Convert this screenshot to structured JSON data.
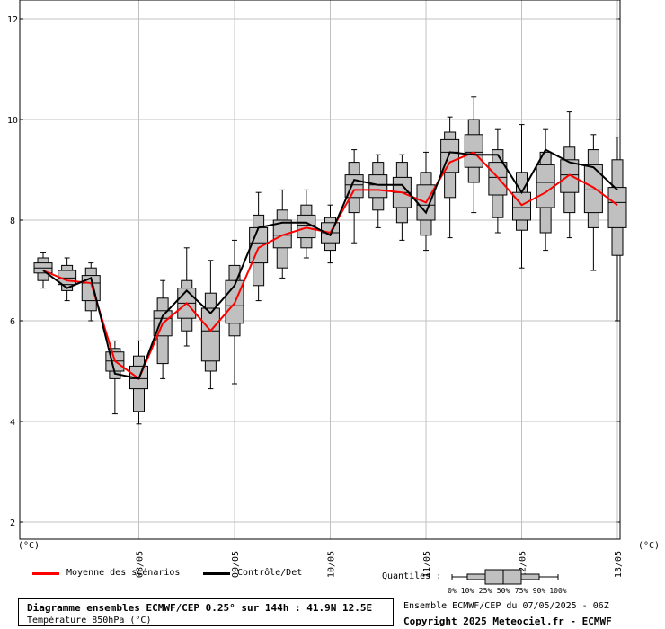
{
  "chart_data": {
    "type": "box",
    "title": "Diagramme ensembles ECMWF/CEP 0.25° sur 144h : 41.9N 12.5E",
    "subtitle": "Température 850hPa (°C)",
    "y_unit_left": "(°C)",
    "y_unit_right": "(°C)",
    "ylim": [
      1.5,
      12.5
    ],
    "y_ticks": [
      2,
      4,
      6,
      8,
      10,
      12
    ],
    "grid": true,
    "x_ticks": [
      "08/05",
      "09/05",
      "10/05",
      "11/05",
      "12/05",
      "13/05"
    ],
    "x_tick_steps": [
      4,
      8,
      12,
      16,
      20,
      24
    ],
    "step_hours": 6,
    "boxes": [
      {
        "step": 0,
        "p0": 6.65,
        "p10": 6.8,
        "p25": 6.95,
        "p50": 7.05,
        "p75": 7.15,
        "p90": 7.25,
        "p100": 7.35
      },
      {
        "step": 1,
        "p0": 6.4,
        "p10": 6.6,
        "p25": 6.72,
        "p50": 6.85,
        "p75": 7.0,
        "p90": 7.1,
        "p100": 7.25
      },
      {
        "step": 2,
        "p0": 6.0,
        "p10": 6.2,
        "p25": 6.4,
        "p50": 6.75,
        "p75": 6.9,
        "p90": 7.05,
        "p100": 7.15
      },
      {
        "step": 3,
        "p0": 4.15,
        "p10": 4.85,
        "p25": 5.0,
        "p50": 5.2,
        "p75": 5.38,
        "p90": 5.45,
        "p100": 5.6
      },
      {
        "step": 4,
        "p0": 3.95,
        "p10": 4.2,
        "p25": 4.65,
        "p50": 4.85,
        "p75": 5.1,
        "p90": 5.3,
        "p100": 5.6
      },
      {
        "step": 5,
        "p0": 4.85,
        "p10": 5.15,
        "p25": 5.7,
        "p50": 6.05,
        "p75": 6.2,
        "p90": 6.45,
        "p100": 6.8
      },
      {
        "step": 6,
        "p0": 5.5,
        "p10": 5.8,
        "p25": 6.05,
        "p50": 6.35,
        "p75": 6.65,
        "p90": 6.8,
        "p100": 7.45
      },
      {
        "step": 7,
        "p0": 4.65,
        "p10": 5.0,
        "p25": 5.2,
        "p50": 5.8,
        "p75": 6.25,
        "p90": 6.55,
        "p100": 7.2
      },
      {
        "step": 8,
        "p0": 4.75,
        "p10": 5.7,
        "p25": 5.95,
        "p50": 6.3,
        "p75": 6.8,
        "p90": 7.1,
        "p100": 7.6
      },
      {
        "step": 9,
        "p0": 6.4,
        "p10": 6.7,
        "p25": 7.15,
        "p50": 7.55,
        "p75": 7.85,
        "p90": 8.1,
        "p100": 8.55
      },
      {
        "step": 10,
        "p0": 6.85,
        "p10": 7.05,
        "p25": 7.45,
        "p50": 7.7,
        "p75": 8.0,
        "p90": 8.2,
        "p100": 8.6
      },
      {
        "step": 11,
        "p0": 7.25,
        "p10": 7.45,
        "p25": 7.65,
        "p50": 7.9,
        "p75": 8.1,
        "p90": 8.3,
        "p100": 8.6
      },
      {
        "step": 12,
        "p0": 7.15,
        "p10": 7.4,
        "p25": 7.55,
        "p50": 7.75,
        "p75": 7.95,
        "p90": 8.05,
        "p100": 8.3
      },
      {
        "step": 13,
        "p0": 7.55,
        "p10": 8.15,
        "p25": 8.45,
        "p50": 8.7,
        "p75": 8.9,
        "p90": 9.15,
        "p100": 9.4
      },
      {
        "step": 14,
        "p0": 7.85,
        "p10": 8.2,
        "p25": 8.45,
        "p50": 8.7,
        "p75": 8.9,
        "p90": 9.15,
        "p100": 9.3
      },
      {
        "step": 15,
        "p0": 7.6,
        "p10": 7.95,
        "p25": 8.25,
        "p50": 8.55,
        "p75": 8.85,
        "p90": 9.15,
        "p100": 9.3
      },
      {
        "step": 16,
        "p0": 7.4,
        "p10": 7.7,
        "p25": 8.0,
        "p50": 8.3,
        "p75": 8.7,
        "p90": 8.95,
        "p100": 9.35
      },
      {
        "step": 17,
        "p0": 7.65,
        "p10": 8.45,
        "p25": 8.95,
        "p50": 9.35,
        "p75": 9.6,
        "p90": 9.75,
        "p100": 10.05
      },
      {
        "step": 18,
        "p0": 8.15,
        "p10": 8.75,
        "p25": 9.05,
        "p50": 9.35,
        "p75": 9.7,
        "p90": 10.0,
        "p100": 10.45
      },
      {
        "step": 19,
        "p0": 7.75,
        "p10": 8.05,
        "p25": 8.5,
        "p50": 8.85,
        "p75": 9.15,
        "p90": 9.4,
        "p100": 9.8
      },
      {
        "step": 20,
        "p0": 7.05,
        "p10": 7.8,
        "p25": 8.0,
        "p50": 8.25,
        "p75": 8.55,
        "p90": 8.95,
        "p100": 9.9
      },
      {
        "step": 21,
        "p0": 7.4,
        "p10": 7.75,
        "p25": 8.25,
        "p50": 8.75,
        "p75": 9.1,
        "p90": 9.35,
        "p100": 9.8
      },
      {
        "step": 22,
        "p0": 7.65,
        "p10": 8.15,
        "p25": 8.55,
        "p50": 8.9,
        "p75": 9.2,
        "p90": 9.45,
        "p100": 10.15
      },
      {
        "step": 23,
        "p0": 7.0,
        "p10": 7.85,
        "p25": 8.15,
        "p50": 8.6,
        "p75": 9.1,
        "p90": 9.4,
        "p100": 9.7
      },
      {
        "step": 24,
        "p0": 6.0,
        "p10": 7.3,
        "p25": 7.85,
        "p50": 8.35,
        "p75": 8.65,
        "p90": 9.2,
        "p100": 9.65
      }
    ],
    "series": [
      {
        "name": "Moyenne des scénarios",
        "color": "#ff0000",
        "values": [
          7.0,
          6.8,
          6.75,
          5.2,
          4.85,
          5.95,
          6.35,
          5.8,
          6.35,
          7.45,
          7.7,
          7.85,
          7.75,
          8.6,
          8.6,
          8.55,
          8.35,
          9.15,
          9.35,
          8.85,
          8.3,
          8.55,
          8.9,
          8.65,
          8.3
        ]
      },
      {
        "name": "Contrôle/Det",
        "color": "#000000",
        "values": [
          7.0,
          6.65,
          6.85,
          4.95,
          4.85,
          6.1,
          6.6,
          6.15,
          6.7,
          7.85,
          7.95,
          7.95,
          7.7,
          8.8,
          8.7,
          8.7,
          8.15,
          9.35,
          9.3,
          9.3,
          8.55,
          9.4,
          9.15,
          9.05,
          8.6
        ]
      }
    ]
  },
  "legend": {
    "mean_label": "Moyenne des scénarios",
    "mean_color": "#ff0000",
    "control_label": "Contrôle/Det",
    "control_color": "#000000",
    "quantiles_label": "Quantiles :",
    "quantile_ticks": [
      "0%",
      "10%",
      "25%",
      "50%",
      "75%",
      "90%",
      "100%"
    ]
  },
  "footer": {
    "title": "Diagramme ensembles ECMWF/CEP 0.25° sur 144h : 41.9N 12.5E",
    "subtitle": "Température 850hPa (°C)",
    "run_info": "Ensemble ECMWF/CEP du 07/05/2025 - 06Z",
    "copyright": "Copyright 2025 Meteociel.fr - ECMWF"
  },
  "colors": {
    "box_fill": "#c0c0c0",
    "grid": "#c0c0c0",
    "axis": "#000000"
  }
}
